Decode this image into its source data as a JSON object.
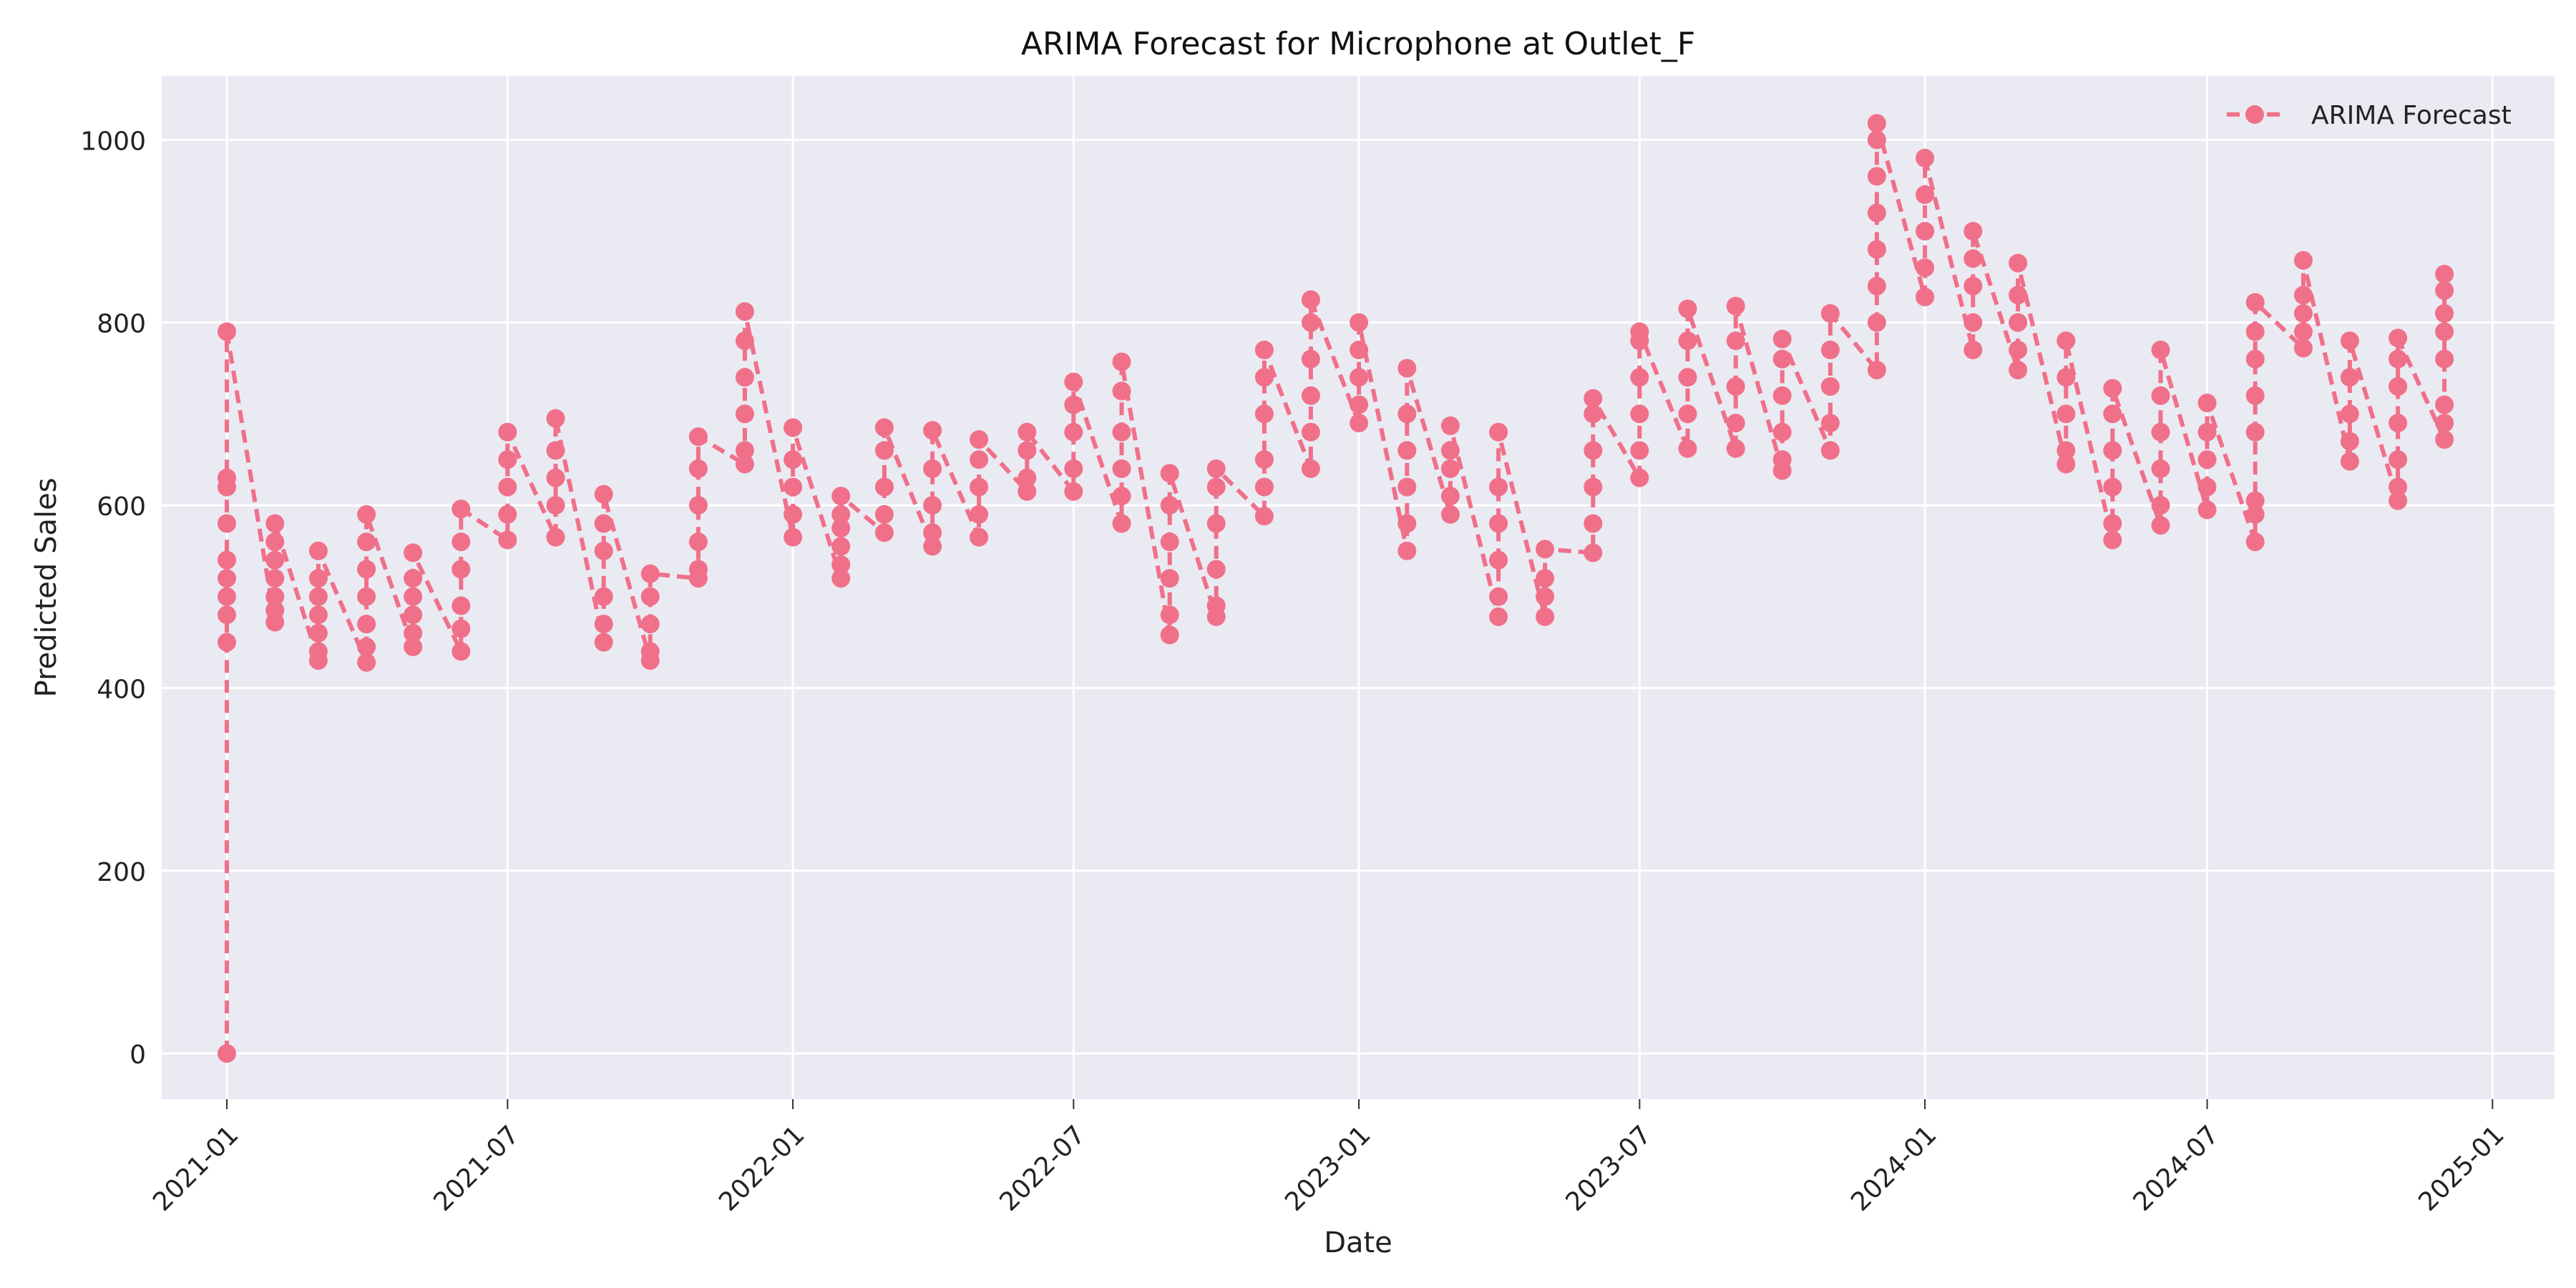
{
  "chart_data": {
    "type": "line",
    "title": "ARIMA Forecast for Microphone at Outlet_F",
    "xlabel": "Date",
    "ylabel": "Predicted Sales",
    "xlim": [
      "2020-11-20",
      "2025-02-10"
    ],
    "ylim": [
      -50,
      1070
    ],
    "x_ticks": [
      "2021-01",
      "2021-07",
      "2022-01",
      "2022-07",
      "2023-01",
      "2023-07",
      "2024-01",
      "2024-07",
      "2025-01"
    ],
    "y_ticks": [
      0,
      200,
      400,
      600,
      800,
      1000
    ],
    "grid": true,
    "legend_position": "top-right",
    "line_style": "dashed",
    "marker": "circle",
    "colors": {
      "series": "#f0708a",
      "plot_bg": "#eaeaf2",
      "grid": "#ffffff"
    },
    "series": [
      {
        "name": "ARIMA Forecast",
        "points": [
          {
            "x": "2021-01-01",
            "values": [
              0,
              450,
              480,
              500,
              520,
              540,
              580,
              620,
              630,
              790
            ]
          },
          {
            "x": "2021-02-01",
            "values": [
              472,
              485,
              500,
              520,
              540,
              560,
              580
            ]
          },
          {
            "x": "2021-03-01",
            "values": [
              430,
              440,
              460,
              480,
              500,
              520,
              550
            ]
          },
          {
            "x": "2021-04-01",
            "values": [
              428,
              445,
              470,
              500,
              530,
              560,
              590
            ]
          },
          {
            "x": "2021-05-01",
            "values": [
              445,
              460,
              480,
              500,
              520,
              548
            ]
          },
          {
            "x": "2021-06-01",
            "values": [
              440,
              465,
              490,
              530,
              560,
              596
            ]
          },
          {
            "x": "2021-07-01",
            "values": [
              562,
              590,
              620,
              650,
              680
            ]
          },
          {
            "x": "2021-08-01",
            "values": [
              565,
              600,
              630,
              660,
              695
            ]
          },
          {
            "x": "2021-09-01",
            "values": [
              450,
              470,
              500,
              550,
              580,
              612
            ]
          },
          {
            "x": "2021-10-01",
            "values": [
              430,
              440,
              470,
              500,
              525
            ]
          },
          {
            "x": "2021-11-01",
            "values": [
              520,
              530,
              560,
              600,
              640,
              675
            ]
          },
          {
            "x": "2021-12-01",
            "values": [
              645,
              660,
              700,
              740,
              780,
              812
            ]
          },
          {
            "x": "2022-01-01",
            "values": [
              565,
              590,
              620,
              650,
              685
            ]
          },
          {
            "x": "2022-02-01",
            "values": [
              520,
              535,
              555,
              575,
              590,
              610
            ]
          },
          {
            "x": "2022-03-01",
            "values": [
              570,
              590,
              620,
              660,
              685
            ]
          },
          {
            "x": "2022-04-01",
            "values": [
              555,
              570,
              600,
              640,
              682
            ]
          },
          {
            "x": "2022-05-01",
            "values": [
              565,
              590,
              620,
              650,
              672
            ]
          },
          {
            "x": "2022-06-01",
            "values": [
              615,
              630,
              660,
              680
            ]
          },
          {
            "x": "2022-07-01",
            "values": [
              615,
              640,
              680,
              710,
              735
            ]
          },
          {
            "x": "2022-08-01",
            "values": [
              580,
              610,
              640,
              680,
              725,
              757
            ]
          },
          {
            "x": "2022-09-01",
            "values": [
              458,
              480,
              520,
              560,
              600,
              635
            ]
          },
          {
            "x": "2022-10-01",
            "values": [
              478,
              490,
              530,
              580,
              620,
              640
            ]
          },
          {
            "x": "2022-11-01",
            "values": [
              588,
              620,
              650,
              700,
              740,
              770
            ]
          },
          {
            "x": "2022-12-01",
            "values": [
              640,
              680,
              720,
              760,
              800,
              825
            ]
          },
          {
            "x": "2023-01-01",
            "values": [
              690,
              710,
              740,
              770,
              800
            ]
          },
          {
            "x": "2023-02-01",
            "values": [
              550,
              580,
              620,
              660,
              700,
              750
            ]
          },
          {
            "x": "2023-03-01",
            "values": [
              590,
              610,
              640,
              660,
              687
            ]
          },
          {
            "x": "2023-04-01",
            "values": [
              478,
              500,
              540,
              580,
              620,
              680
            ]
          },
          {
            "x": "2023-05-01",
            "values": [
              478,
              500,
              520,
              552
            ]
          },
          {
            "x": "2023-06-01",
            "values": [
              548,
              580,
              620,
              660,
              700,
              717
            ]
          },
          {
            "x": "2023-07-01",
            "values": [
              630,
              660,
              700,
              740,
              780,
              790
            ]
          },
          {
            "x": "2023-08-01",
            "values": [
              662,
              700,
              740,
              780,
              815
            ]
          },
          {
            "x": "2023-09-01",
            "values": [
              662,
              690,
              730,
              780,
              818
            ]
          },
          {
            "x": "2023-10-01",
            "values": [
              638,
              650,
              680,
              720,
              760,
              782
            ]
          },
          {
            "x": "2023-11-01",
            "values": [
              660,
              690,
              730,
              770,
              810
            ]
          },
          {
            "x": "2023-12-01",
            "values": [
              748,
              800,
              840,
              880,
              920,
              960,
              1000,
              1018
            ]
          },
          {
            "x": "2024-01-01",
            "values": [
              828,
              860,
              900,
              940,
              980
            ]
          },
          {
            "x": "2024-02-01",
            "values": [
              770,
              800,
              840,
              870,
              900
            ]
          },
          {
            "x": "2024-03-01",
            "values": [
              748,
              770,
              800,
              830,
              865
            ]
          },
          {
            "x": "2024-04-01",
            "values": [
              645,
              660,
              700,
              740,
              780
            ]
          },
          {
            "x": "2024-05-01",
            "values": [
              562,
              580,
              620,
              660,
              700,
              728
            ]
          },
          {
            "x": "2024-06-01",
            "values": [
              578,
              600,
              640,
              680,
              720,
              770
            ]
          },
          {
            "x": "2024-07-01",
            "values": [
              595,
              620,
              650,
              680,
              712
            ]
          },
          {
            "x": "2024-08-01",
            "values": [
              560,
              590,
              605,
              680,
              720,
              760,
              790,
              822
            ]
          },
          {
            "x": "2024-09-01",
            "values": [
              772,
              790,
              810,
              830,
              868
            ]
          },
          {
            "x": "2024-10-01",
            "values": [
              648,
              670,
              700,
              740,
              780
            ]
          },
          {
            "x": "2024-11-01",
            "values": [
              605,
              620,
              650,
              690,
              730,
              760,
              783
            ]
          },
          {
            "x": "2024-12-01",
            "values": [
              672,
              690,
              710,
              760,
              790,
              810,
              835,
              853
            ]
          }
        ]
      }
    ]
  }
}
